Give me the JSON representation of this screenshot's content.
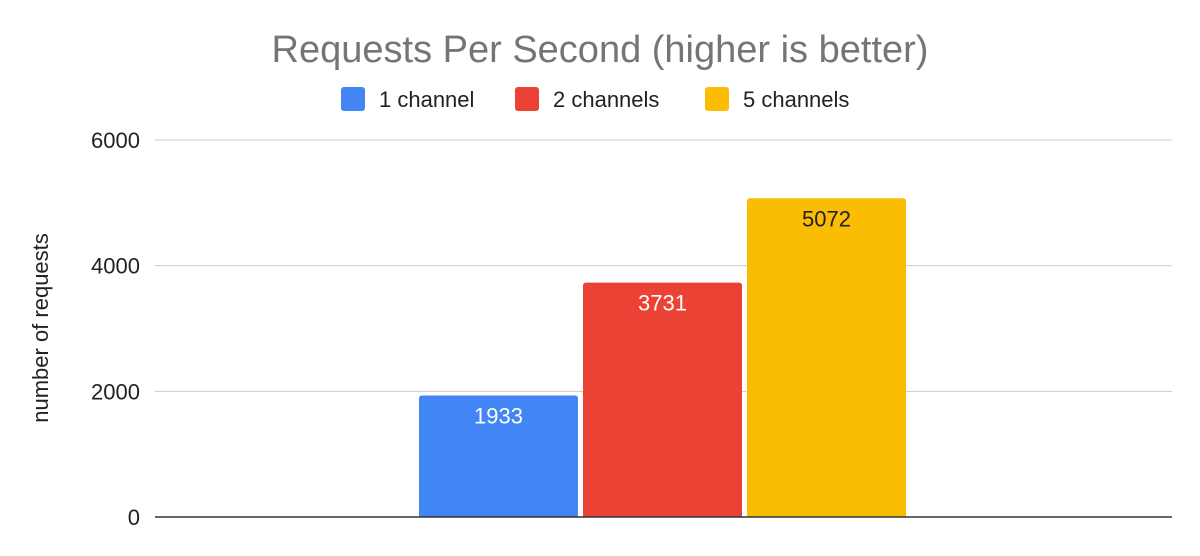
{
  "chart_data": {
    "type": "bar",
    "title": "Requests Per Second (higher is better)",
    "xlabel": "",
    "ylabel": "number of requests",
    "ylim": [
      0,
      6000
    ],
    "yticks": [
      0,
      2000,
      4000,
      6000
    ],
    "grid": true,
    "legend_position": "top",
    "categories": [
      ""
    ],
    "series": [
      {
        "name": "1 channel",
        "color": "#4285F4",
        "label_color": "#ffffff",
        "values": [
          1933
        ]
      },
      {
        "name": "2 channels",
        "color": "#EA4335",
        "label_color": "#ffffff",
        "values": [
          3731
        ]
      },
      {
        "name": "5 channels",
        "color": "#FBBC04",
        "label_color": "#222222",
        "values": [
          5072
        ]
      }
    ]
  }
}
